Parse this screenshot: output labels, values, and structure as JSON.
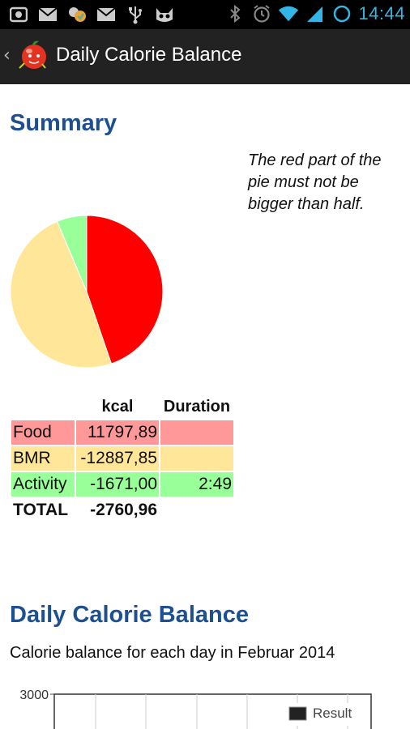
{
  "status_bar": {
    "time": "14:44",
    "icons_left": [
      "screenshot-icon",
      "gmail-icon",
      "notification-icon",
      "gmail-icon",
      "usb-icon",
      "cat-icon"
    ],
    "icons_right": [
      "bluetooth-icon",
      "alarm-icon",
      "wifi-icon",
      "signal-icon",
      "sync-icon"
    ],
    "accent": "#33b5e5"
  },
  "action_bar": {
    "title": "Daily Calorie Balance",
    "up_glyph": "‹"
  },
  "summary": {
    "title": "Summary",
    "note": "The red part of the pie must not be bigger than half.",
    "table": {
      "headers": [
        "",
        "kcal",
        "Duration"
      ],
      "rows": [
        {
          "label": "Food",
          "kcal": "11797,89",
          "duration": "",
          "color": "#ff9999"
        },
        {
          "label": "BMR",
          "kcal": "-12887,85",
          "duration": "",
          "color": "#ffe699"
        },
        {
          "label": "Activity",
          "kcal": "-1671,00",
          "duration": "2:49",
          "color": "#99ff99"
        }
      ],
      "total": {
        "label": "TOTAL",
        "kcal": "-2760,96"
      }
    }
  },
  "chart_data": {
    "type": "pie",
    "title": "",
    "slices": [
      {
        "label": "Food",
        "value": 11797.89,
        "color": "#ff0000"
      },
      {
        "label": "BMR",
        "value": 12887.85,
        "color": "#ffe699"
      },
      {
        "label": "Activity",
        "value": 1671.0,
        "color": "#99ff99"
      }
    ]
  },
  "balance": {
    "title": "Daily Calorie Balance",
    "subtitle": "Calorie balance for each day in Februar 2014",
    "y_top_label": "3000",
    "legend_label": "Result"
  },
  "colors": {
    "heading": "#1d4f91",
    "action_bar": "#222222"
  }
}
